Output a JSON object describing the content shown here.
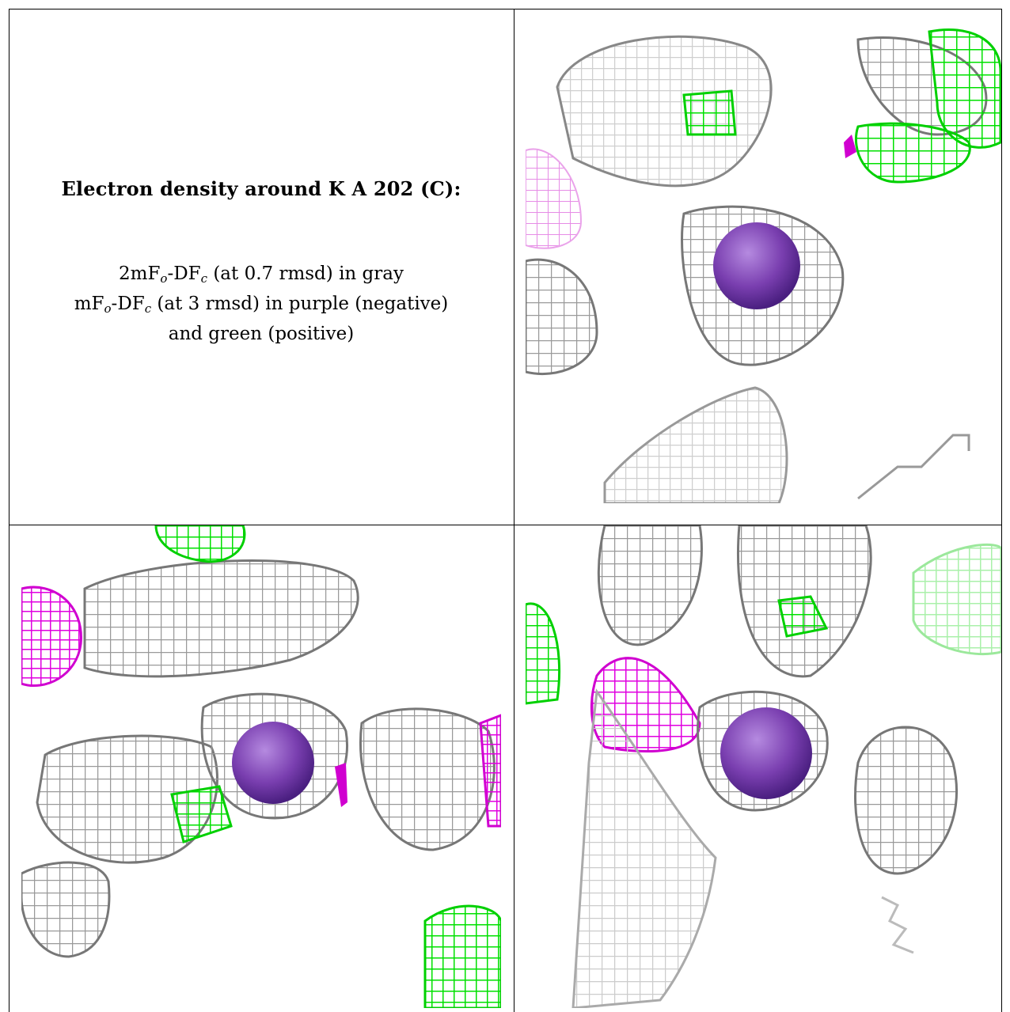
{
  "caption": {
    "title": "Electron density around K A 202 (C):",
    "map1": {
      "prefix": "2mF",
      "sub_o": "o",
      "dash": "-DF",
      "sub_c": "c",
      "text": " (at 0.7 rmsd) in gray"
    },
    "map2": {
      "prefix": "mF",
      "sub_o": "o",
      "dash": "-DF",
      "sub_c": "c",
      "text": " (at 3 rmsd) in purple (negative)"
    },
    "map2_cont": "and green (positive)"
  },
  "colors": {
    "gray_mesh": "#8f8f8f",
    "gray_mesh_light": "#c9c9c9",
    "negative_purple": "#e000e0",
    "positive_green": "#00e000",
    "ion_sphere": "#7a3fb0"
  },
  "panels": [
    "view-1",
    "view-2",
    "view-3"
  ]
}
